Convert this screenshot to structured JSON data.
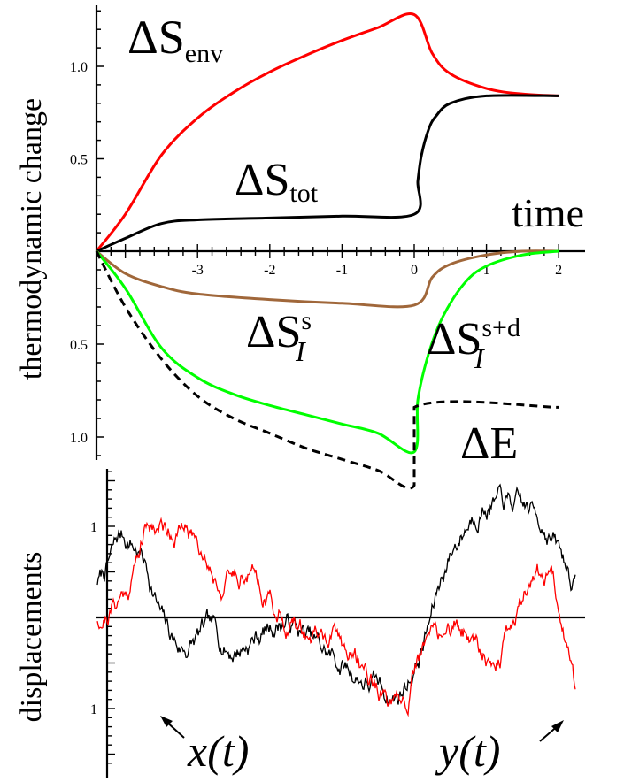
{
  "chart_data": [
    {
      "type": "line",
      "title": "",
      "xlabel": "time",
      "ylabel": "thermodynamic change",
      "xlim": [
        -4.4,
        2.05
      ],
      "ylim": [
        -1.27,
        1.33
      ],
      "x_ticks": [
        "-3",
        "-2",
        "-1",
        "0",
        "1",
        "2"
      ],
      "y_ticks_upper": [
        "0.5",
        "1.0"
      ],
      "y_ticks_lower": [
        "0.5",
        "1.0"
      ],
      "series": [
        {
          "name": "ΔS_env",
          "name_main": "ΔS",
          "name_sub": "env",
          "color": "#ff0000",
          "x": [
            -4.4,
            -4.0,
            -3.5,
            -3.0,
            -2.5,
            -2.0,
            -1.5,
            -1.0,
            -0.5,
            0.0,
            0.25,
            0.5,
            1.0,
            1.5,
            2.0
          ],
          "y": [
            0.0,
            0.2,
            0.52,
            0.72,
            0.86,
            0.97,
            1.06,
            1.14,
            1.21,
            1.28,
            1.07,
            0.96,
            0.88,
            0.85,
            0.84
          ]
        },
        {
          "name": "ΔS_tot",
          "name_main": "ΔS",
          "name_sub": "tot",
          "color": "#000000",
          "x": [
            -4.4,
            -4.0,
            -3.5,
            -3.0,
            -2.0,
            -1.0,
            0.0,
            0.05,
            0.1,
            0.2,
            0.3,
            0.5,
            1.0,
            2.0
          ],
          "y": [
            0.0,
            0.07,
            0.15,
            0.17,
            0.18,
            0.19,
            0.2,
            0.38,
            0.52,
            0.66,
            0.73,
            0.8,
            0.84,
            0.84
          ]
        },
        {
          "name": "ΔS_I^s",
          "name_main": "ΔS",
          "name_sup": "s",
          "name_sub": "I",
          "color": "#a0673a",
          "x": [
            -4.4,
            -4.0,
            -3.5,
            -3.0,
            -2.0,
            -1.0,
            0.0,
            0.25,
            0.5,
            1.0,
            1.5,
            2.0
          ],
          "y": [
            0.0,
            -0.12,
            -0.19,
            -0.23,
            -0.26,
            -0.28,
            -0.29,
            -0.14,
            -0.07,
            -0.02,
            0.0,
            0.0
          ]
        },
        {
          "name": "ΔS_I^s+d",
          "name_main": "ΔS",
          "name_sup": "s+d",
          "name_sub": "I",
          "color": "#00ff00",
          "x": [
            -4.4,
            -4.0,
            -3.5,
            -3.0,
            -2.5,
            -2.0,
            -1.5,
            -1.0,
            -0.5,
            0.0,
            0.05,
            0.2,
            0.4,
            0.7,
            1.0,
            1.5,
            2.0
          ],
          "y": [
            0.0,
            -0.2,
            -0.52,
            -0.68,
            -0.77,
            -0.83,
            -0.88,
            -0.93,
            -0.98,
            -1.08,
            -0.8,
            -0.55,
            -0.35,
            -0.17,
            -0.08,
            -0.02,
            0.0
          ]
        },
        {
          "name": "ΔE",
          "name_main": "ΔE",
          "color": "#000000",
          "dashed": true,
          "x": [
            -4.4,
            -4.0,
            -3.5,
            -3.0,
            -2.5,
            -2.0,
            -1.5,
            -1.0,
            -0.5,
            0.0,
            0.0,
            2.0
          ],
          "y": [
            0.0,
            -0.3,
            -0.58,
            -0.78,
            -0.9,
            -0.98,
            -1.06,
            -1.12,
            -1.18,
            -1.26,
            -0.84,
            -0.84
          ]
        }
      ]
    },
    {
      "type": "line",
      "title": "",
      "xlabel": "",
      "ylabel": "displacements",
      "ylim": [
        -1.65,
        1.65
      ],
      "y_ticks": [
        "1",
        "1"
      ],
      "series": [
        {
          "name": "x(t)",
          "name_text": "x(t)",
          "color": "#000000"
        },
        {
          "name": "y(t)",
          "name_text": "y(t)",
          "color": "#ff0000"
        }
      ]
    }
  ]
}
